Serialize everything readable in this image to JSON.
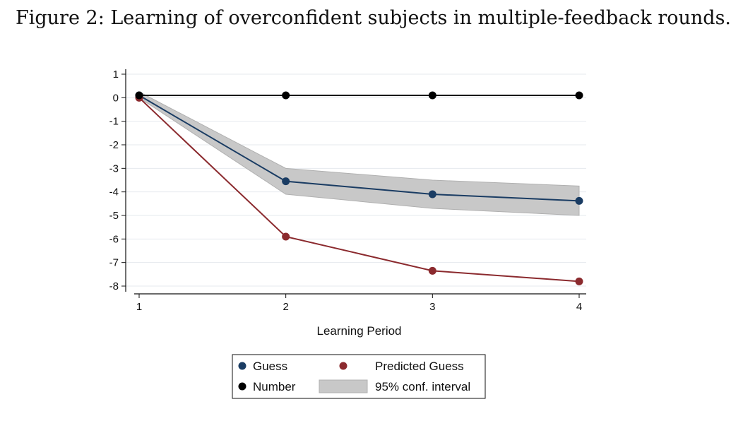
{
  "figure": {
    "title": "Figure 2: Learning of overconfident subjects in multiple-feedback rounds."
  },
  "chart_data": {
    "type": "line",
    "x": [
      1,
      2,
      3,
      4
    ],
    "xticks": [
      "1",
      "2",
      "3",
      "4"
    ],
    "yticks": [
      "1",
      "0",
      "-1",
      "-2",
      "-3",
      "-4",
      "-5",
      "-6",
      "-7",
      "-8"
    ],
    "xlabel": "Learning Period",
    "ylabel": "",
    "xlim": [
      1,
      4
    ],
    "ylim": [
      -8.3,
      1.1
    ],
    "grid": true,
    "legend_position": "bottom",
    "series": [
      {
        "name": "Guess",
        "values": [
          0.1,
          -3.55,
          -4.1,
          -4.38
        ],
        "color": "#1a3c63",
        "marker": "circle"
      },
      {
        "name": "Predicted Guess",
        "values": [
          0.0,
          -5.9,
          -7.35,
          -7.8
        ],
        "color": "#8b2a2e",
        "marker": "circle"
      },
      {
        "name": "Number",
        "values": [
          0.1,
          0.1,
          0.1,
          0.1
        ],
        "color": "#000000",
        "marker": "circle"
      }
    ],
    "confidence_band": {
      "name": "95% conf. interval",
      "color": "#c8c8c8",
      "lower": [
        0.0,
        -4.1,
        -4.7,
        -5.0
      ],
      "upper": [
        0.25,
        -3.0,
        -3.5,
        -3.75
      ]
    }
  }
}
